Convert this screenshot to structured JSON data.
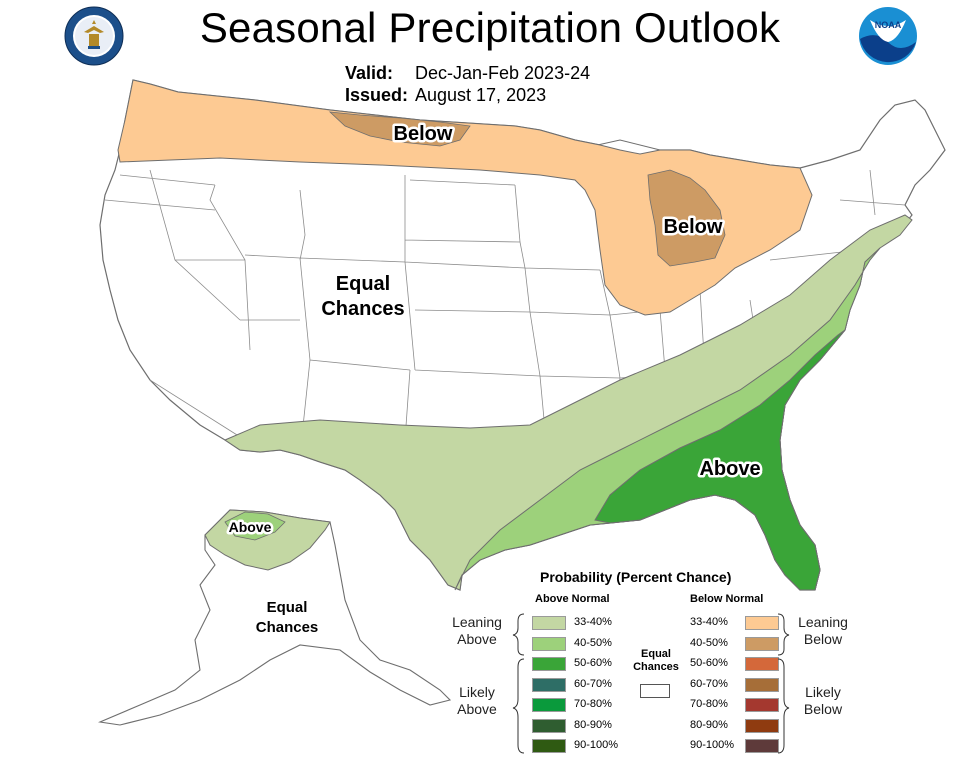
{
  "header": {
    "title": "Seasonal Precipitation Outlook",
    "valid_label": "Valid:",
    "valid_value": "Dec-Jan-Feb 2023-24",
    "issued_label": "Issued:",
    "issued_value": "August 17, 2023"
  },
  "logos": {
    "left": "department-of-commerce-seal",
    "right": "noaa-logo"
  },
  "map": {
    "labels": {
      "below_north": "Below",
      "below_michigan": "Below",
      "equal_chances_line1": "Equal",
      "equal_chances_line2": "Chances",
      "above_southeast": "Above",
      "alaska_above": "Above",
      "alaska_equal_line1": "Equal",
      "alaska_equal_line2": "Chances"
    },
    "colors": {
      "leaning_below": "#fdca93",
      "below_40_50": "#cd9b64",
      "leaning_above": "#c3d7a3",
      "above_40_50": "#9dd17b",
      "above_50_60": "#3aa538",
      "equal": "#ffffff",
      "border": "#7a7a7a"
    }
  },
  "legend": {
    "title": "Probability (Percent Chance)",
    "above_header": "Above Normal",
    "below_header": "Below Normal",
    "leaning_above": [
      "Leaning",
      "Above"
    ],
    "likely_above": [
      "Likely",
      "Above"
    ],
    "leaning_below": [
      "Leaning",
      "Below"
    ],
    "likely_below": [
      "Likely",
      "Below"
    ],
    "equal": [
      "Equal",
      "Chances"
    ],
    "above_rows": [
      {
        "label": "33-40%",
        "color": "#c3d7a3"
      },
      {
        "label": "40-50%",
        "color": "#9dd17b"
      },
      {
        "label": "50-60%",
        "color": "#3aa538"
      },
      {
        "label": "60-70%",
        "color": "#2e6e66"
      },
      {
        "label": "70-80%",
        "color": "#0a9a3c"
      },
      {
        "label": "80-90%",
        "color": "#2f5d30"
      },
      {
        "label": "90-100%",
        "color": "#2f5a12"
      }
    ],
    "below_rows": [
      {
        "label": "33-40%",
        "color": "#fdca93"
      },
      {
        "label": "40-50%",
        "color": "#cd9b64"
      },
      {
        "label": "50-60%",
        "color": "#d4683a"
      },
      {
        "label": "60-70%",
        "color": "#a66e38"
      },
      {
        "label": "70-80%",
        "color": "#a4382f"
      },
      {
        "label": "80-90%",
        "color": "#8f3b10"
      },
      {
        "label": "90-100%",
        "color": "#5e3a3a"
      }
    ]
  }
}
